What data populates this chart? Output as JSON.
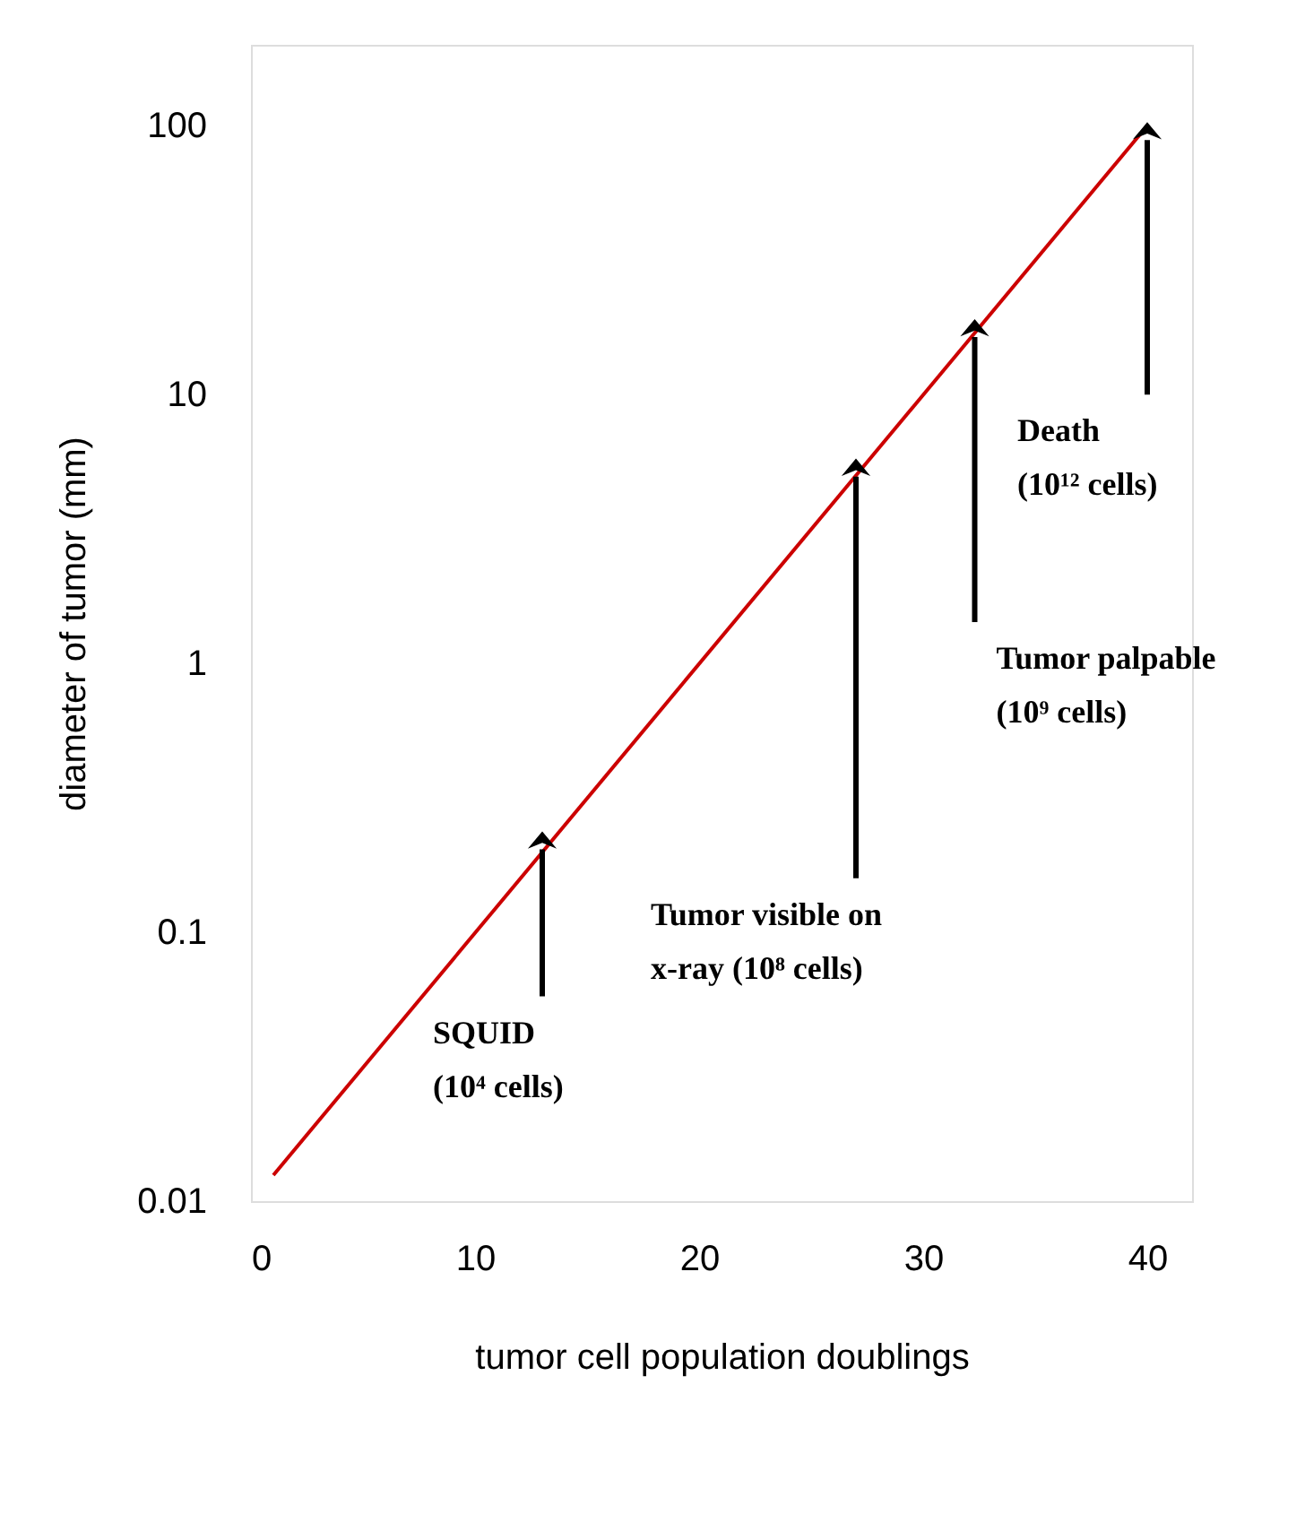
{
  "chart_data": {
    "type": "line",
    "xlabel": "tumor cell population doublings",
    "ylabel": "diameter of tumor (mm)",
    "x": [
      1,
      40
    ],
    "series": [
      {
        "color": "#cc0000",
        "values": [
          0.0125,
          100
        ]
      }
    ],
    "xlim": [
      0,
      42
    ],
    "xticks": [
      0,
      10,
      20,
      30,
      40
    ],
    "ylim": [
      0.01,
      200
    ],
    "yticks": [
      0.01,
      0.1,
      1,
      10,
      100
    ],
    "log": "y",
    "grid": false,
    "line_style": "solid",
    "annotations": [
      {
        "text": "SQUID\n(10⁴ cells)",
        "x": 13,
        "y": 0.23
      },
      {
        "text": "Tumor visible on\nx-ray (10⁸ cells)",
        "x": 27,
        "y": 5.6
      },
      {
        "text": "Tumor palpable\n(10⁹ cells)",
        "x": 32.3,
        "y": 18.5
      },
      {
        "text": "Death\n(10¹² cells)",
        "x": 40,
        "y": 100
      }
    ]
  }
}
